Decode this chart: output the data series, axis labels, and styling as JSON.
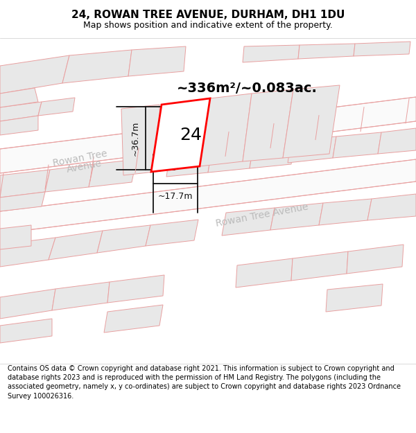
{
  "title": "24, ROWAN TREE AVENUE, DURHAM, DH1 1DU",
  "subtitle": "Map shows position and indicative extent of the property.",
  "footer": "Contains OS data © Crown copyright and database right 2021. This information is subject to Crown copyright and database rights 2023 and is reproduced with the permission of HM Land Registry. The polygons (including the associated geometry, namely x, y co-ordinates) are subject to Crown copyright and database rights 2023 Ordnance Survey 100026316.",
  "area_text": "~336m²/~0.083ac.",
  "dim_width": "~17.7m",
  "dim_height": "~36.7m",
  "label_24": "24",
  "street1": "Rowan Tree",
  "street1_suffix": "Avenue",
  "street2": "Rowan Tree Avenue",
  "bg_color": "#ffffff",
  "block_color": "#e8e8e8",
  "block_border": "#e8a0a0",
  "highlight_color": "#ff0000",
  "dim_color": "#111111",
  "street_color": "#bbbbbb",
  "title_fontsize": 11,
  "subtitle_fontsize": 9,
  "footer_fontsize": 7.0,
  "road_bg": "#f7f0f0"
}
